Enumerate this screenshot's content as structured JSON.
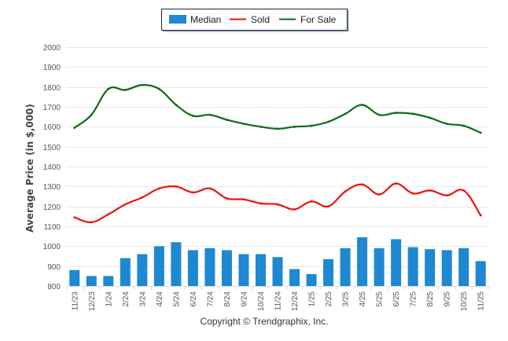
{
  "chart_data": {
    "type": "bar+line",
    "title": "",
    "xlabel": "",
    "ylabel": "Average Price (in $,000)",
    "ylim": [
      800,
      2000
    ],
    "yticks": [
      800,
      900,
      1000,
      1100,
      1200,
      1300,
      1400,
      1500,
      1600,
      1700,
      1800,
      1900,
      2000
    ],
    "grid": true,
    "legend_position": "top-center",
    "categories": [
      "11/23",
      "12/23",
      "1/24",
      "2/24",
      "3/24",
      "4/24",
      "5/24",
      "6/24",
      "7/24",
      "8/24",
      "9/24",
      "10/24",
      "11/24",
      "12/24",
      "1/25",
      "2/25",
      "3/25",
      "4/25",
      "5/25",
      "6/25",
      "7/25",
      "8/25",
      "9/25",
      "10/25",
      "11/25"
    ],
    "series": [
      {
        "name": "Median",
        "type": "bar",
        "color": "#1e88d0",
        "values": [
          880,
          850,
          850,
          940,
          960,
          1000,
          1020,
          980,
          990,
          980,
          960,
          960,
          945,
          885,
          860,
          935,
          990,
          1045,
          990,
          1035,
          995,
          985,
          980,
          990,
          925
        ]
      },
      {
        "name": "Sold",
        "type": "line",
        "color": "#ee1111",
        "values": [
          1145,
          1120,
          1160,
          1210,
          1245,
          1290,
          1300,
          1270,
          1290,
          1240,
          1235,
          1215,
          1210,
          1185,
          1225,
          1200,
          1275,
          1310,
          1260,
          1315,
          1265,
          1280,
          1255,
          1280,
          1155
        ]
      },
      {
        "name": "For Sale",
        "type": "line",
        "color": "#0b6b12",
        "values": [
          1595,
          1660,
          1790,
          1785,
          1810,
          1790,
          1710,
          1655,
          1660,
          1635,
          1615,
          1600,
          1590,
          1600,
          1605,
          1625,
          1665,
          1710,
          1660,
          1670,
          1665,
          1645,
          1615,
          1605,
          1570
        ]
      }
    ],
    "footer": "Copyright © Trendgraphix, Inc."
  }
}
